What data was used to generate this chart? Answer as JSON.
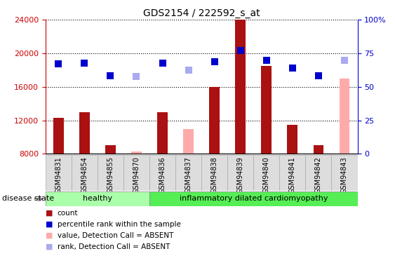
{
  "title": "GDS2154 / 222592_s_at",
  "samples": [
    "GSM94831",
    "GSM94854",
    "GSM94855",
    "GSM94870",
    "GSM94836",
    "GSM94837",
    "GSM94838",
    "GSM94839",
    "GSM94840",
    "GSM94841",
    "GSM94842",
    "GSM94843"
  ],
  "healthy_count": 4,
  "bar_values": [
    12300,
    13000,
    9000,
    null,
    13000,
    null,
    16000,
    24000,
    18500,
    11500,
    9000,
    null
  ],
  "bar_absent": [
    null,
    null,
    null,
    8300,
    null,
    11000,
    null,
    null,
    null,
    null,
    null,
    17000
  ],
  "dot_values": [
    18700,
    18800,
    17300,
    null,
    18800,
    null,
    19000,
    20300,
    19200,
    18200,
    17300,
    null
  ],
  "dot_absent": [
    null,
    null,
    null,
    17200,
    null,
    18000,
    null,
    null,
    null,
    null,
    null,
    19200
  ],
  "ylim_left": [
    8000,
    24000
  ],
  "ylim_right": [
    0,
    100
  ],
  "yticks_left": [
    8000,
    12000,
    16000,
    20000,
    24000
  ],
  "yticks_right": [
    0,
    25,
    50,
    75,
    100
  ],
  "bar_color": "#aa1111",
  "bar_absent_color": "#ffaaaa",
  "dot_color": "#0000cc",
  "dot_absent_color": "#aaaaee",
  "healthy_bg": "#aaffaa",
  "inflam_bg": "#55ee55",
  "disease_label_healthy": "healthy",
  "disease_label_inflam": "inflammatory dilated cardiomyopathy",
  "disease_state_label": "disease state",
  "legend_items": [
    {
      "label": "count",
      "color": "#aa1111"
    },
    {
      "label": "percentile rank within the sample",
      "color": "#0000cc"
    },
    {
      "label": "value, Detection Call = ABSENT",
      "color": "#ffaaaa"
    },
    {
      "label": "rank, Detection Call = ABSENT",
      "color": "#aaaaee"
    }
  ],
  "bar_width": 0.4,
  "dot_size": 55,
  "background_color": "#ffffff"
}
